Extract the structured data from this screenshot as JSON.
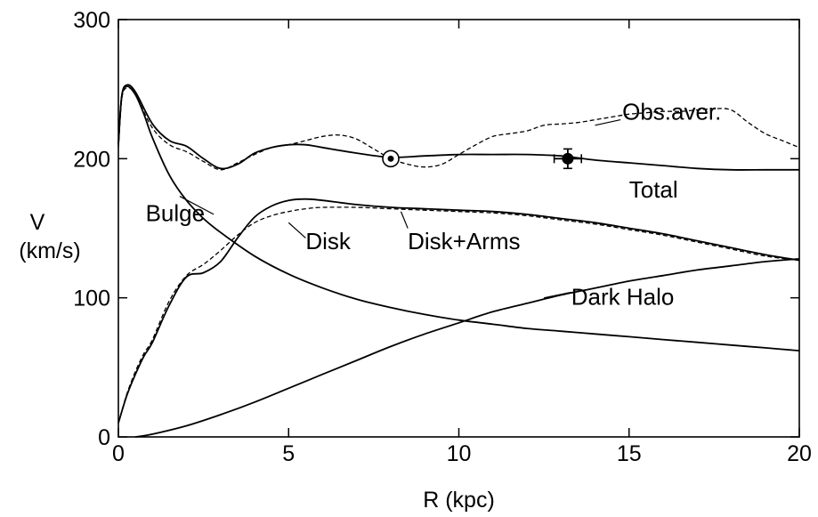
{
  "chart_data": {
    "type": "line",
    "title": "",
    "xlabel": "R (kpc)",
    "ylabel": [
      "V",
      "(km/s)"
    ],
    "xlim": [
      0,
      20
    ],
    "ylim": [
      0,
      300
    ],
    "x_ticks": [
      0,
      5,
      10,
      15,
      20
    ],
    "y_ticks": [
      0,
      100,
      200,
      300
    ],
    "x_tick_labels": [
      "0",
      "5",
      "10",
      "15",
      "20"
    ],
    "y_tick_labels": [
      "0",
      "100",
      "200",
      "300"
    ],
    "grid": false,
    "series": [
      {
        "name": "Total",
        "style": "solid",
        "x": [
          0,
          0.1,
          0.25,
          0.5,
          1.0,
          1.5,
          2.0,
          2.5,
          3.0,
          3.5,
          4.0,
          4.5,
          5.0,
          5.5,
          6.0,
          7.0,
          8.0,
          9.0,
          10.0,
          11.0,
          12.0,
          13.0,
          14.0,
          15.0,
          16.0,
          17.0,
          18.0,
          19.0,
          20.0
        ],
        "y": [
          210,
          245,
          253,
          248,
          225,
          213,
          209,
          200,
          193,
          196,
          204,
          208,
          210,
          210,
          208,
          204,
          201,
          202,
          203,
          203,
          203,
          202,
          199,
          197,
          195,
          193,
          192,
          192,
          192
        ]
      },
      {
        "name": "Obs.aver.",
        "style": "dashed",
        "x": [
          0,
          0.1,
          0.25,
          0.5,
          1.0,
          1.5,
          2.0,
          2.5,
          3.0,
          3.5,
          4.0,
          4.5,
          5.0,
          5.5,
          6.0,
          6.5,
          7.0,
          7.5,
          8.0,
          8.5,
          9.0,
          9.5,
          10.0,
          10.5,
          11.0,
          11.5,
          12.0,
          12.5,
          13.0,
          13.5,
          14.0,
          14.5,
          15.0,
          15.5,
          16.0,
          16.5,
          17.0,
          17.5,
          18.0,
          18.5,
          19.0,
          19.5,
          20.0
        ],
        "y": [
          208,
          243,
          251,
          246,
          222,
          210,
          205,
          198,
          192,
          197,
          203,
          208,
          210,
          213,
          216,
          217,
          214,
          207,
          200,
          196,
          194,
          196,
          203,
          210,
          216,
          218,
          220,
          224,
          225,
          226,
          228,
          230,
          232,
          233,
          234,
          234,
          235,
          236,
          235,
          226,
          218,
          213,
          208
        ]
      },
      {
        "name": "Bulge",
        "style": "solid",
        "x": [
          0,
          0.1,
          0.25,
          0.5,
          0.75,
          1.0,
          1.5,
          2.0,
          2.5,
          3.0,
          4.0,
          5.0,
          6.0,
          7.0,
          8.0,
          9.0,
          10.0,
          11.0,
          12.0,
          13.0,
          14.0,
          15.0,
          16.0,
          17.0,
          18.0,
          19.0,
          20.0
        ],
        "y": [
          210,
          245,
          252,
          246,
          232,
          215,
          188,
          170,
          157,
          147,
          130,
          117,
          107,
          99,
          93,
          88,
          84,
          81,
          78,
          76,
          74,
          72,
          70,
          68,
          66,
          64,
          62
        ]
      },
      {
        "name": "Disk",
        "style": "solid",
        "x": [
          0,
          0.25,
          0.5,
          0.75,
          1.0,
          1.5,
          2.0,
          2.5,
          3.0,
          3.5,
          4.0,
          4.5,
          5.0,
          5.5,
          6.0,
          7.0,
          8.0,
          9.0,
          10.0,
          11.0,
          12.0,
          13.0,
          14.0,
          15.0,
          16.0,
          17.0,
          18.0,
          19.0,
          20.0
        ],
        "y": [
          10,
          30,
          45,
          58,
          68,
          95,
          115,
          118,
          126,
          143,
          158,
          166,
          170,
          171,
          170,
          167,
          165,
          164,
          163,
          162,
          160,
          157,
          154,
          150,
          146,
          141,
          136,
          131,
          127
        ]
      },
      {
        "name": "Disk+Arms",
        "style": "dashed",
        "x": [
          0,
          0.25,
          0.5,
          0.75,
          1.0,
          1.5,
          2.0,
          2.5,
          3.0,
          3.5,
          4.0,
          4.5,
          5.0,
          5.5,
          6.0,
          7.0,
          8.0,
          9.0,
          10.0,
          11.0,
          12.0,
          13.0,
          14.0,
          15.0,
          16.0,
          17.0,
          18.0,
          19.0,
          20.0
        ],
        "y": [
          10,
          31,
          47,
          60,
          70,
          98,
          116,
          124,
          134,
          145,
          154,
          159,
          162,
          164,
          165,
          165,
          164,
          163,
          162,
          161,
          159,
          156,
          153,
          149,
          145,
          140,
          135,
          130,
          127
        ]
      },
      {
        "name": "Dark Halo",
        "style": "solid",
        "x": [
          0.5,
          1.0,
          2.0,
          3.0,
          4.0,
          5.0,
          6.0,
          7.0,
          8.0,
          9.0,
          10.0,
          11.0,
          12.0,
          13.0,
          14.0,
          15.0,
          16.0,
          17.0,
          18.0,
          19.0,
          20.0
        ],
        "y": [
          0,
          2,
          8,
          16,
          25,
          35,
          45,
          55,
          65,
          74,
          82,
          90,
          96,
          102,
          107,
          112,
          116,
          120,
          123,
          126,
          128
        ]
      }
    ],
    "points": [
      {
        "name": "sun-marker",
        "x": 8.0,
        "y": 200,
        "marker": "circled-dot"
      },
      {
        "name": "obs-point",
        "x": 13.2,
        "y": 200,
        "marker": "filled-circle",
        "xerr": 0.4,
        "yerr": 7
      }
    ],
    "annotations": [
      {
        "text": "Obs.aver.",
        "x": 14.8,
        "y": 228,
        "anchor": "start",
        "leader": [
          [
            14.75,
            228
          ],
          [
            14.0,
            224
          ]
        ]
      },
      {
        "text": "Total",
        "x": 15.0,
        "y": 172,
        "anchor": "start",
        "leader": null
      },
      {
        "text": "Bulge",
        "x": 0.8,
        "y": 155,
        "anchor": "start",
        "leader": [
          [
            1.8,
            173
          ],
          [
            2.8,
            160
          ]
        ]
      },
      {
        "text": "Disk",
        "x": 5.5,
        "y": 135,
        "anchor": "start",
        "leader": [
          [
            5.5,
            143
          ],
          [
            5.0,
            154
          ]
        ]
      },
      {
        "text": "Disk+Arms",
        "x": 8.5,
        "y": 135,
        "anchor": "start",
        "leader": [
          [
            8.5,
            150
          ],
          [
            8.3,
            162
          ]
        ]
      },
      {
        "text": "Dark Halo",
        "x": 13.3,
        "y": 95,
        "anchor": "start",
        "leader": [
          [
            13.3,
            104
          ],
          [
            12.5,
            100
          ]
        ]
      }
    ]
  }
}
